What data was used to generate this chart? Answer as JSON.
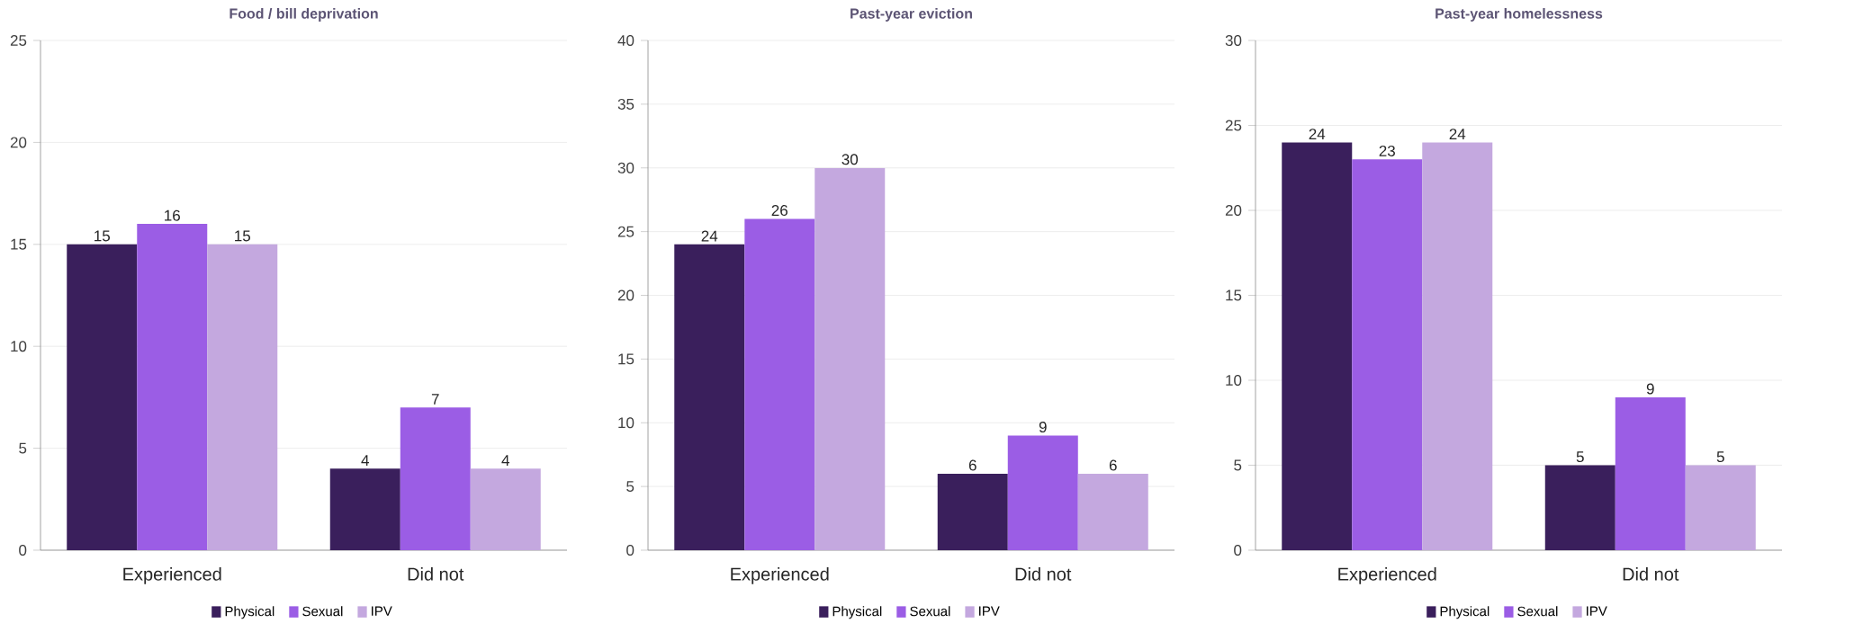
{
  "chart_data": [
    {
      "type": "bar",
      "title": "Food / bill deprivation",
      "categories": [
        "Experienced",
        "Did not"
      ],
      "series": [
        {
          "name": "Physical",
          "color": "#3a1f5c",
          "values": [
            15,
            4
          ]
        },
        {
          "name": "Sexual",
          "color": "#9b5de5",
          "values": [
            16,
            7
          ]
        },
        {
          "name": "IPV",
          "color": "#c4a8df",
          "values": [
            15,
            4
          ]
        }
      ],
      "ylim": [
        0,
        25
      ],
      "yticks": [
        0,
        5,
        10,
        15,
        20,
        25
      ],
      "grid": "y",
      "legend": "bottom",
      "data_labels": true
    },
    {
      "type": "bar",
      "title": "Past-year eviction",
      "categories": [
        "Experienced",
        "Did not"
      ],
      "series": [
        {
          "name": "Physical",
          "color": "#3a1f5c",
          "values": [
            24,
            6
          ]
        },
        {
          "name": "Sexual",
          "color": "#9b5de5",
          "values": [
            26,
            9
          ]
        },
        {
          "name": "IPV",
          "color": "#c4a8df",
          "values": [
            30,
            6
          ]
        }
      ],
      "ylim": [
        0,
        40
      ],
      "yticks": [
        0,
        5,
        10,
        15,
        20,
        25,
        30,
        35,
        40
      ],
      "grid": "y",
      "legend": "bottom",
      "data_labels": true
    },
    {
      "type": "bar",
      "title": "Past-year homelessness",
      "categories": [
        "Experienced",
        "Did not"
      ],
      "series": [
        {
          "name": "Physical",
          "color": "#3a1f5c",
          "values": [
            24,
            5
          ]
        },
        {
          "name": "Sexual",
          "color": "#9b5de5",
          "values": [
            23,
            9
          ]
        },
        {
          "name": "IPV",
          "color": "#c4a8df",
          "values": [
            24,
            5
          ]
        }
      ],
      "ylim": [
        0,
        30
      ],
      "yticks": [
        0,
        5,
        10,
        15,
        20,
        25,
        30
      ],
      "grid": "y",
      "legend": "bottom",
      "data_labels": true
    }
  ]
}
